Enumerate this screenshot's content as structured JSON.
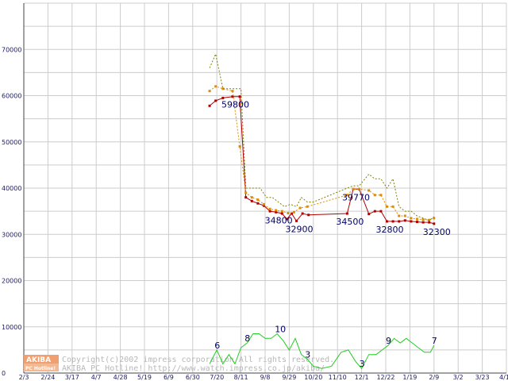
{
  "chart_data": {
    "type": "line",
    "y_ticks": [
      "70000",
      "60000",
      "50000",
      "40000",
      "30000",
      "20000",
      "10000",
      "0"
    ],
    "ylim": [
      0,
      80000
    ],
    "x_ticks": [
      "2/3",
      "2/24",
      "3/17",
      "4/7",
      "4/28",
      "5/19",
      "6/9",
      "6/30",
      "7/20",
      "8/11",
      "9/8",
      "9/29",
      "10/20",
      "11/10",
      "12/1",
      "12/22",
      "1/19",
      "2/9",
      "3/2",
      "3/23",
      "4/13"
    ],
    "grid": true,
    "series": [
      {
        "key": "min",
        "color": "#b00000",
        "style": "solid",
        "points": [
          [
            7.7,
            57800
          ],
          [
            7.95,
            58900
          ],
          [
            8.25,
            59500
          ],
          [
            8.65,
            59800
          ],
          [
            8.95,
            59800
          ],
          [
            9.2,
            38000
          ],
          [
            9.45,
            37200
          ],
          [
            9.7,
            36700
          ],
          [
            9.95,
            36200
          ],
          [
            10.2,
            35000
          ],
          [
            10.45,
            34800
          ],
          [
            10.7,
            34500
          ],
          [
            10.9,
            33300
          ],
          [
            11.1,
            34500
          ],
          [
            11.3,
            32900
          ],
          [
            11.55,
            34500
          ],
          [
            11.8,
            34200
          ],
          [
            13.4,
            34500
          ],
          [
            13.65,
            39770
          ],
          [
            13.9,
            39770
          ],
          [
            14.3,
            34400
          ],
          [
            14.55,
            35000
          ],
          [
            14.8,
            35000
          ],
          [
            15.05,
            32800
          ],
          [
            15.3,
            32800
          ],
          [
            15.55,
            32800
          ],
          [
            15.8,
            33000
          ],
          [
            16.05,
            32800
          ],
          [
            16.3,
            32700
          ],
          [
            16.55,
            32600
          ],
          [
            16.8,
            32600
          ],
          [
            17.0,
            32300
          ]
        ]
      },
      {
        "key": "avg",
        "color": "#e08c00",
        "style": "dotted",
        "points": [
          [
            7.7,
            61000
          ],
          [
            7.95,
            62000
          ],
          [
            8.25,
            61500
          ],
          [
            8.65,
            61000
          ],
          [
            8.95,
            49000
          ],
          [
            9.2,
            39000
          ],
          [
            9.45,
            38000
          ],
          [
            9.7,
            37500
          ],
          [
            9.95,
            36500
          ],
          [
            10.2,
            35500
          ],
          [
            10.45,
            35200
          ],
          [
            10.7,
            35000
          ],
          [
            10.95,
            34600
          ],
          [
            11.2,
            34800
          ],
          [
            11.45,
            35700
          ],
          [
            11.75,
            36000
          ],
          [
            13.4,
            38500
          ],
          [
            13.65,
            39770
          ],
          [
            13.9,
            39800
          ],
          [
            14.3,
            39500
          ],
          [
            14.55,
            38500
          ],
          [
            14.8,
            38500
          ],
          [
            15.05,
            36000
          ],
          [
            15.3,
            36000
          ],
          [
            15.55,
            34000
          ],
          [
            15.8,
            34000
          ],
          [
            16.05,
            33500
          ],
          [
            16.3,
            33300
          ],
          [
            16.55,
            33200
          ],
          [
            16.8,
            33100
          ],
          [
            17.0,
            33500
          ]
        ]
      },
      {
        "key": "max",
        "color": "#808000",
        "style": "dotted",
        "points": [
          [
            7.7,
            66000
          ],
          [
            7.95,
            69000
          ],
          [
            8.25,
            61500
          ],
          [
            8.65,
            61500
          ],
          [
            9.0,
            61500
          ],
          [
            9.2,
            40000
          ],
          [
            9.5,
            40000
          ],
          [
            9.8,
            40000
          ],
          [
            10.05,
            38000
          ],
          [
            10.3,
            38000
          ],
          [
            10.55,
            37000
          ],
          [
            10.8,
            36000
          ],
          [
            11.05,
            36500
          ],
          [
            11.3,
            36000
          ],
          [
            11.5,
            38000
          ],
          [
            11.75,
            37000
          ],
          [
            12.0,
            37000
          ],
          [
            13.4,
            40000
          ],
          [
            13.65,
            40500
          ],
          [
            13.9,
            40500
          ],
          [
            14.3,
            43000
          ],
          [
            14.55,
            42000
          ],
          [
            14.8,
            42000
          ],
          [
            15.05,
            40000
          ],
          [
            15.3,
            42000
          ],
          [
            15.55,
            36000
          ],
          [
            15.8,
            35000
          ],
          [
            16.05,
            35000
          ],
          [
            16.3,
            34000
          ],
          [
            16.55,
            33500
          ],
          [
            16.8,
            33000
          ],
          [
            17.0,
            33800
          ]
        ]
      },
      {
        "key": "count",
        "color": "#22cc22",
        "style": "solid",
        "points": [
          [
            7.7,
            2000
          ],
          [
            8.0,
            5000
          ],
          [
            8.25,
            2000
          ],
          [
            8.5,
            4000
          ],
          [
            8.75,
            2000
          ],
          [
            9.0,
            5500
          ],
          [
            9.25,
            6500
          ],
          [
            9.5,
            8500
          ],
          [
            9.75,
            8500
          ],
          [
            10.0,
            7500
          ],
          [
            10.25,
            7500
          ],
          [
            10.5,
            8500
          ],
          [
            10.75,
            7000
          ],
          [
            11.0,
            5000
          ],
          [
            11.25,
            7500
          ],
          [
            11.5,
            4000
          ],
          [
            11.75,
            3000
          ],
          [
            12.0,
            1500
          ],
          [
            12.35,
            1000
          ],
          [
            12.75,
            1500
          ],
          [
            13.15,
            4500
          ],
          [
            13.45,
            5000
          ],
          [
            13.75,
            2500
          ],
          [
            14.0,
            1000
          ],
          [
            14.3,
            4000
          ],
          [
            14.6,
            4000
          ],
          [
            14.85,
            5000
          ],
          [
            15.1,
            6000
          ],
          [
            15.35,
            7500
          ],
          [
            15.6,
            6500
          ],
          [
            15.85,
            7500
          ],
          [
            16.1,
            6500
          ],
          [
            16.35,
            5500
          ],
          [
            16.6,
            4500
          ],
          [
            16.85,
            4500
          ],
          [
            17.0,
            6000
          ]
        ]
      }
    ],
    "data_labels": [
      {
        "text": "59800",
        "x": 8.65,
        "y": 59800
      },
      {
        "text": "34800",
        "x": 10.45,
        "y": 34800
      },
      {
        "text": "32900",
        "x": 11.3,
        "y": 32900
      },
      {
        "text": "34500",
        "x": 13.4,
        "y": 34500
      },
      {
        "text": "39770",
        "x": 13.65,
        "y": 39770
      },
      {
        "text": "32800",
        "x": 15.05,
        "y": 32800
      },
      {
        "text": "32300",
        "x": 17.0,
        "y": 32300
      }
    ],
    "count_labels": [
      {
        "text": "6",
        "x": 8.0,
        "y": 5000
      },
      {
        "text": "8",
        "x": 9.25,
        "y": 6500
      },
      {
        "text": "10",
        "x": 10.5,
        "y": 8500
      },
      {
        "text": "3",
        "x": 11.75,
        "y": 3000
      },
      {
        "text": "3",
        "x": 14.0,
        "y": 1000
      },
      {
        "text": "9",
        "x": 15.1,
        "y": 6000
      },
      {
        "text": "7",
        "x": 17.0,
        "y": 6000
      }
    ]
  },
  "watermark": {
    "logo_top": "AKIBA",
    "logo_bottom": "PC Hotline!",
    "line1": "Copyright(c)2002 impress corporation All rights reserved.",
    "line2": "AKIBA PC Hotline!  http://www.watch.impress.co.jp/akiba/",
    "logo_color": "#f0a070"
  }
}
